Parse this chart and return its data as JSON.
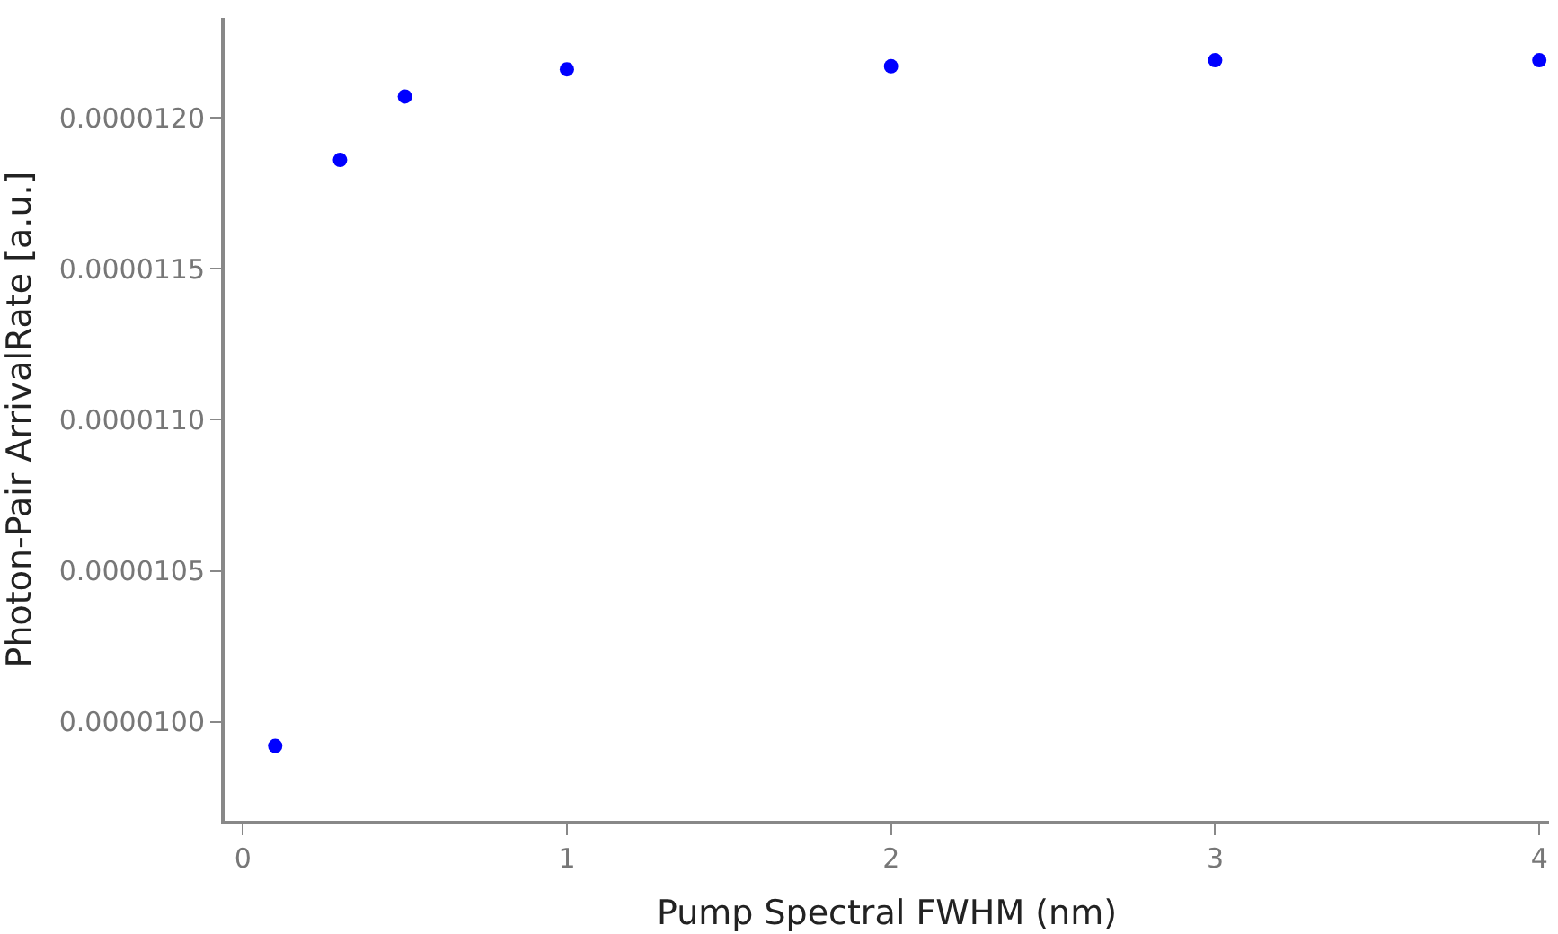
{
  "chart_data": {
    "type": "scatter",
    "xlabel": "Pump Spectral FWHM (nm)",
    "ylabel": "Photon-Pair ArrivalRate [a.u.]",
    "x": [
      0.1,
      0.3,
      0.5,
      1,
      2,
      3,
      4
    ],
    "series": [
      {
        "color": "#0000ff",
        "values": [
          9.92e-06,
          1.186e-05,
          1.207e-05,
          1.216e-05,
          1.217e-05,
          1.219e-05,
          1.219e-05
        ]
      }
    ],
    "xlim": [
      -0.056,
      4.03
    ],
    "ylim": [
      9.672e-06,
      1.233e-05
    ],
    "xticks": [
      0,
      1,
      2,
      3,
      4
    ],
    "yticks": [
      {
        "value": 1e-05,
        "label": "0.0000100"
      },
      {
        "value": 1.05e-05,
        "label": "0.0000105"
      },
      {
        "value": 1.1e-05,
        "label": "0.0000110"
      },
      {
        "value": 1.15e-05,
        "label": "0.0000115"
      },
      {
        "value": 1.2e-05,
        "label": "0.0000120"
      }
    ]
  }
}
